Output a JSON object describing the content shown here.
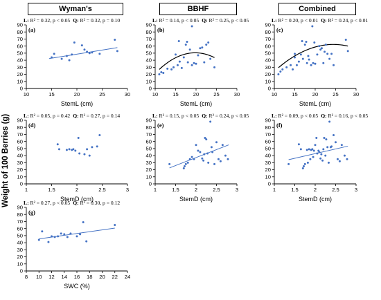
{
  "figure": {
    "y_axis_label": "Weight of 100 Berries (g)",
    "columns": [
      "Wyman's",
      "BBHF",
      "Combined"
    ]
  },
  "chart_data": [
    {
      "id": "a",
      "panel_label": "(a)",
      "type": "scatter",
      "group": "Wyman's",
      "stats": {
        "L": "R² = 0.32, p < 0.05",
        "Q": "R² = 0.32, p = 0.10"
      },
      "xlabel": "StemL (cm)",
      "xlim": [
        10,
        30
      ],
      "xticks": [
        10,
        15,
        20,
        25,
        30
      ],
      "ylim": [
        0,
        90
      ],
      "yticks": [
        0,
        10,
        20,
        30,
        40,
        50,
        60,
        70,
        80,
        90
      ],
      "points": [
        [
          15,
          44
        ],
        [
          15.5,
          49
        ],
        [
          17,
          42
        ],
        [
          18,
          46
        ],
        [
          18.5,
          40
        ],
        [
          19,
          48
        ],
        [
          19.5,
          65
        ],
        [
          21,
          61
        ],
        [
          21.5,
          55
        ],
        [
          22,
          52
        ],
        [
          22.5,
          50
        ],
        [
          23,
          51
        ],
        [
          24.5,
          49
        ],
        [
          27.5,
          69
        ],
        [
          28,
          53
        ]
      ],
      "fit": {
        "kind": "linear",
        "coef": [
          25.6,
          1.15
        ],
        "x_range": [
          14.5,
          28
        ]
      }
    },
    {
      "id": "b",
      "panel_label": "(b)",
      "type": "scatter",
      "group": "BBHF",
      "stats": {
        "L": "R² = 0.14, p < 0.05",
        "Q": "R² = 0.25, p < 0.05"
      },
      "xlabel": "StemL (cm)",
      "xlim": [
        10,
        30
      ],
      "xticks": [
        10,
        15,
        20,
        25,
        30
      ],
      "ylim": [
        0,
        90
      ],
      "yticks": [
        0,
        10,
        20,
        30,
        40,
        50,
        60,
        70,
        80,
        90
      ],
      "points": [
        [
          11,
          20
        ],
        [
          11.5,
          23
        ],
        [
          12,
          22
        ],
        [
          13,
          28
        ],
        [
          14,
          27
        ],
        [
          14.5,
          30
        ],
        [
          15,
          48
        ],
        [
          15.5,
          33
        ],
        [
          15.8,
          67
        ],
        [
          16,
          38
        ],
        [
          16.5,
          29
        ],
        [
          17,
          44
        ],
        [
          17.5,
          62
        ],
        [
          17.8,
          66
        ],
        [
          18,
          37
        ],
        [
          18.5,
          55
        ],
        [
          19,
          33
        ],
        [
          19,
          88
        ],
        [
          19.5,
          36
        ],
        [
          20,
          35
        ],
        [
          20.5,
          47
        ],
        [
          21,
          57
        ],
        [
          21.5,
          58
        ],
        [
          22,
          37
        ],
        [
          22.5,
          62
        ],
        [
          23,
          65
        ],
        [
          23.5,
          42
        ],
        [
          24.5,
          30
        ]
      ],
      "fit": {
        "kind": "quadratic",
        "coef": [
          -68.9,
          12.07,
          -0.305
        ],
        "x_range": [
          11,
          24.5
        ]
      }
    },
    {
      "id": "c",
      "panel_label": "(c)",
      "type": "scatter",
      "group": "Combined",
      "stats": {
        "L": "R² = 0.20, p < 0.01",
        "Q": "R² = 0.24, p < 0.01"
      },
      "xlabel": "StemL (cm)",
      "xlim": [
        10,
        30
      ],
      "xticks": [
        10,
        15,
        20,
        25,
        30
      ],
      "ylim": [
        0,
        90
      ],
      "yticks": [
        0,
        10,
        20,
        30,
        40,
        50,
        60,
        70,
        80,
        90
      ],
      "points": [
        [
          11,
          20
        ],
        [
          11.5,
          24
        ],
        [
          12,
          27
        ],
        [
          13,
          30
        ],
        [
          14,
          33
        ],
        [
          14.5,
          27
        ],
        [
          15,
          44
        ],
        [
          15,
          49
        ],
        [
          15.5,
          33
        ],
        [
          16,
          38
        ],
        [
          16.5,
          48
        ],
        [
          16.8,
          67
        ],
        [
          17,
          42
        ],
        [
          17.5,
          62
        ],
        [
          17.8,
          66
        ],
        [
          18,
          36
        ],
        [
          18.3,
          46
        ],
        [
          18.5,
          41
        ],
        [
          19,
          33
        ],
        [
          19.3,
          88
        ],
        [
          19.5,
          36
        ],
        [
          19.8,
          65
        ],
        [
          20,
          35
        ],
        [
          20.5,
          48
        ],
        [
          21,
          60
        ],
        [
          21.3,
          55
        ],
        [
          21.6,
          57
        ],
        [
          22,
          36
        ],
        [
          22.3,
          52
        ],
        [
          22.6,
          62
        ],
        [
          23,
          49
        ],
        [
          23.5,
          42
        ],
        [
          24,
          49
        ],
        [
          24.5,
          33
        ],
        [
          27.5,
          69
        ],
        [
          28,
          53
        ]
      ],
      "fit": {
        "kind": "quadratic",
        "coef": [
          -46.5,
          8.9,
          -0.182
        ],
        "x_range": [
          11,
          28
        ]
      }
    },
    {
      "id": "d",
      "panel_label": "(d)",
      "type": "scatter",
      "group": "Wyman's",
      "stats": {
        "L": "R² = 0.05, p = 0.42",
        "Q": "R² = 0.27, p = 0.14"
      },
      "xlabel": "StemD (cm)",
      "xlim": [
        1,
        3
      ],
      "xticks": [
        1,
        1.5,
        2,
        2.5,
        3
      ],
      "ylim": [
        0,
        90
      ],
      "yticks": [
        0,
        10,
        20,
        30,
        40,
        50,
        60,
        70,
        80,
        90
      ],
      "points": [
        [
          1.62,
          56
        ],
        [
          1.65,
          49
        ],
        [
          1.8,
          48
        ],
        [
          1.85,
          49
        ],
        [
          1.9,
          48
        ],
        [
          1.93,
          49
        ],
        [
          1.97,
          47
        ],
        [
          2.03,
          65
        ],
        [
          2.05,
          43
        ],
        [
          2.15,
          42
        ],
        [
          2.2,
          49
        ],
        [
          2.25,
          40
        ],
        [
          2.3,
          52
        ],
        [
          2.4,
          53
        ],
        [
          2.45,
          69
        ]
      ],
      "fit": null
    },
    {
      "id": "e",
      "panel_label": "(e)",
      "type": "scatter",
      "group": "BBHF",
      "stats": {
        "L": "R² = 0.15, p < 0.05",
        "Q": "R² = 0.24, p < 0.05"
      },
      "xlabel": "StemD (cm)",
      "xlim": [
        1,
        3
      ],
      "xticks": [
        1,
        1.5,
        2,
        2.5,
        3
      ],
      "ylim": [
        0,
        90
      ],
      "yticks": [
        0,
        10,
        20,
        30,
        40,
        50,
        60,
        70,
        80,
        90
      ],
      "points": [
        [
          1.35,
          28
        ],
        [
          1.7,
          22
        ],
        [
          1.72,
          25
        ],
        [
          1.75,
          28
        ],
        [
          1.8,
          30
        ],
        [
          1.85,
          35
        ],
        [
          1.9,
          38
        ],
        [
          1.95,
          35
        ],
        [
          2.0,
          55
        ],
        [
          2.05,
          47
        ],
        [
          2.1,
          45
        ],
        [
          2.15,
          36
        ],
        [
          2.18,
          33
        ],
        [
          2.2,
          42
        ],
        [
          2.22,
          65
        ],
        [
          2.25,
          63
        ],
        [
          2.28,
          43
        ],
        [
          2.3,
          30
        ],
        [
          2.35,
          88
        ],
        [
          2.38,
          52
        ],
        [
          2.4,
          45
        ],
        [
          2.45,
          28
        ],
        [
          2.5,
          59
        ],
        [
          2.55,
          35
        ],
        [
          2.6,
          32
        ],
        [
          2.65,
          55
        ],
        [
          2.72,
          40
        ],
        [
          2.78,
          35
        ]
      ],
      "fit": {
        "kind": "linear",
        "coef": [
          -7.8,
          22.5
        ],
        "x_range": [
          1.35,
          2.8
        ]
      }
    },
    {
      "id": "f",
      "panel_label": "(f)",
      "type": "scatter",
      "group": "Combined",
      "stats": {
        "L": "R² = 0.09, p < 0.05",
        "Q": "R² = 0.16, p < 0.05"
      },
      "xlabel": "StemD (cm)",
      "xlim": [
        1,
        3
      ],
      "xticks": [
        1,
        1.5,
        2,
        2.5,
        3
      ],
      "ylim": [
        0,
        90
      ],
      "yticks": [
        0,
        10,
        20,
        30,
        40,
        50,
        60,
        70,
        80,
        90
      ],
      "points": [
        [
          1.35,
          28
        ],
        [
          1.6,
          56
        ],
        [
          1.65,
          49
        ],
        [
          1.7,
          22
        ],
        [
          1.72,
          25
        ],
        [
          1.75,
          28
        ],
        [
          1.8,
          48
        ],
        [
          1.82,
          30
        ],
        [
          1.85,
          49
        ],
        [
          1.88,
          35
        ],
        [
          1.9,
          48
        ],
        [
          1.93,
          49
        ],
        [
          1.95,
          38
        ],
        [
          1.97,
          47
        ],
        [
          2.0,
          55
        ],
        [
          2.03,
          65
        ],
        [
          2.05,
          43
        ],
        [
          2.08,
          47
        ],
        [
          2.1,
          45
        ],
        [
          2.13,
          36
        ],
        [
          2.15,
          42
        ],
        [
          2.18,
          33
        ],
        [
          2.2,
          49
        ],
        [
          2.22,
          65
        ],
        [
          2.25,
          40
        ],
        [
          2.27,
          63
        ],
        [
          2.3,
          52
        ],
        [
          2.33,
          30
        ],
        [
          2.35,
          88
        ],
        [
          2.38,
          52
        ],
        [
          2.4,
          53
        ],
        [
          2.45,
          69
        ],
        [
          2.5,
          59
        ],
        [
          2.55,
          35
        ],
        [
          2.6,
          32
        ],
        [
          2.65,
          55
        ],
        [
          2.72,
          40
        ],
        [
          2.78,
          35
        ]
      ],
      "fit": {
        "kind": "linear",
        "coef": [
          16.4,
          13.2
        ],
        "x_range": [
          1.35,
          2.8
        ]
      }
    },
    {
      "id": "g",
      "panel_label": "(g)",
      "type": "scatter",
      "group": "Wyman's",
      "stats": {
        "L": "R² = 0.27, p < 0.05",
        "Q": "R² = 0.30, p = 0.12"
      },
      "xlabel": "SWC (%)",
      "xlim": [
        8,
        24
      ],
      "xticks": [
        8,
        10,
        12,
        14,
        16,
        18,
        20,
        22,
        24
      ],
      "ylim": [
        0,
        90
      ],
      "yticks": [
        0,
        10,
        20,
        30,
        40,
        50,
        60,
        70,
        80,
        90
      ],
      "points": [
        [
          10,
          44
        ],
        [
          10.5,
          56
        ],
        [
          11.5,
          41
        ],
        [
          12,
          49
        ],
        [
          12.5,
          48
        ],
        [
          13,
          49
        ],
        [
          13.5,
          53
        ],
        [
          14,
          52
        ],
        [
          14.5,
          48
        ],
        [
          15,
          53
        ],
        [
          16,
          49
        ],
        [
          16.5,
          52
        ],
        [
          17,
          69
        ],
        [
          17.5,
          42
        ],
        [
          22,
          65
        ]
      ],
      "fit": {
        "kind": "linear",
        "coef": [
          32.7,
          1.27
        ],
        "x_range": [
          10,
          22
        ]
      }
    }
  ]
}
